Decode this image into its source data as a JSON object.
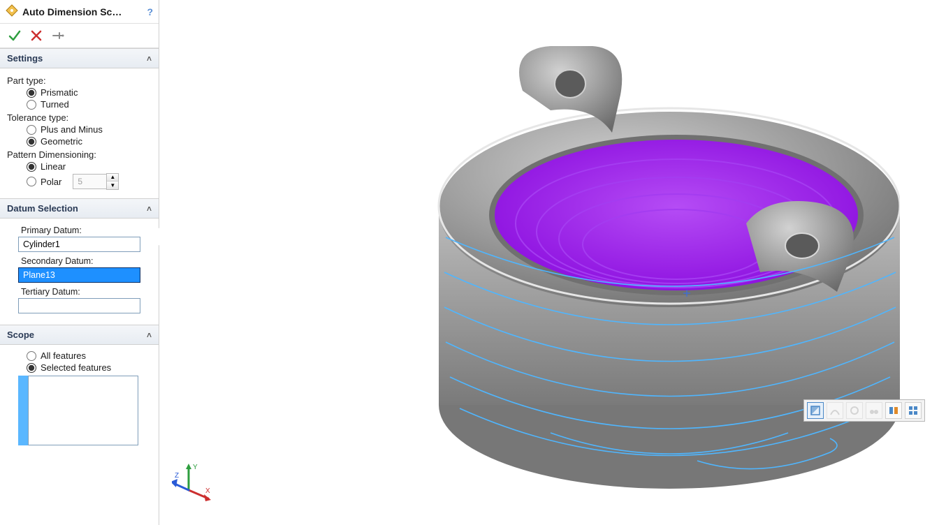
{
  "header": {
    "title": "Auto Dimension Sc…",
    "feature_icon_color": "#d9a441",
    "help_label": "?"
  },
  "confirm": {
    "ok_color": "#2e9e3f",
    "cancel_color": "#cc2f2f",
    "pin_color": "#8a8a8a"
  },
  "sections": {
    "settings": {
      "title": "Settings",
      "part_type_label": "Part type:",
      "part_type_options": {
        "prismatic": "Prismatic",
        "turned": "Turned"
      },
      "part_type_selected": "prismatic",
      "tolerance_type_label": "Tolerance type:",
      "tolerance_options": {
        "plus_minus": "Plus and Minus",
        "geometric": "Geometric"
      },
      "tolerance_selected": "geometric",
      "pattern_label": "Pattern Dimensioning:",
      "pattern_options": {
        "linear": "Linear",
        "polar": "Polar"
      },
      "pattern_selected": "linear",
      "polar_value": "5"
    },
    "datum": {
      "title": "Datum Selection",
      "primary_label": "Primary Datum:",
      "primary_value": "Cylinder1",
      "primary_swatch": "#f38fb1",
      "secondary_label": "Secondary Datum:",
      "secondary_value": "Plane13",
      "secondary_swatch": "#8a2be2",
      "secondary_selected_bg": "#1e90ff",
      "tertiary_label": "Tertiary Datum:",
      "tertiary_value": "",
      "tertiary_swatch": "#35c435"
    },
    "scope": {
      "title": "Scope",
      "options": {
        "all": "All features",
        "selected": "Selected features"
      },
      "selected": "selected",
      "list_swatch": "#5ab7ff"
    }
  },
  "canvas": {
    "background": "#ffffff",
    "body_fill": "#9a9a9a",
    "body_highlight": "#cfcfcf",
    "body_shadow": "#6f6f6f",
    "selected_face_fill": "#9b1de8",
    "wire_color": "#4fb6ff",
    "triad": {
      "x_color": "#cc2f2f",
      "y_color": "#2e9e3f",
      "z_color": "#2a5bd7",
      "x_label": "X",
      "y_label": "Y",
      "z_label": "Z"
    }
  },
  "view_toolbar": {
    "buttons": [
      {
        "name": "section-view-icon",
        "active": true,
        "dim": false,
        "fill": "#4a88c7"
      },
      {
        "name": "zebra-icon",
        "active": false,
        "dim": true,
        "fill": "#b0b0b0"
      },
      {
        "name": "curvature-icon",
        "active": false,
        "dim": true,
        "fill": "#b0b0b0"
      },
      {
        "name": "draft-icon",
        "active": false,
        "dim": true,
        "fill": "#b0b0b0"
      },
      {
        "name": "compare-icon",
        "active": false,
        "dim": false,
        "fill": "#4a88c7"
      },
      {
        "name": "tile-icon",
        "active": false,
        "dim": false,
        "fill": "#4a88c7"
      }
    ]
  }
}
